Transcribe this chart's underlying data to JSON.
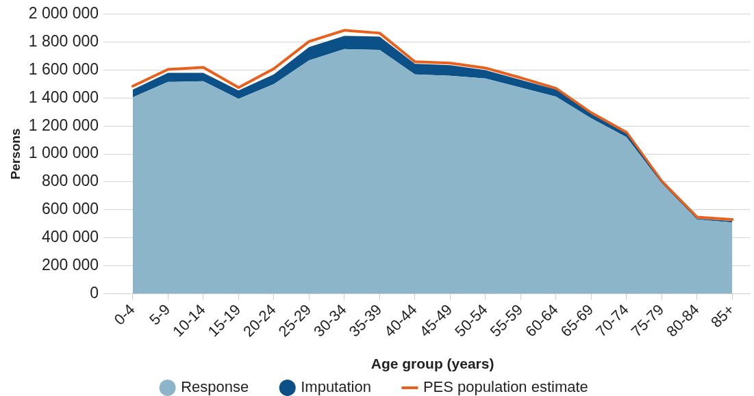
{
  "chart_data": {
    "type": "area",
    "xlabel": "Age group (years)",
    "ylabel": "Persons",
    "categories": [
      "0-4",
      "5-9",
      "10-14",
      "15-19",
      "20-24",
      "25-29",
      "30-34",
      "35-39",
      "40-44",
      "45-49",
      "50-54",
      "55-59",
      "60-64",
      "65-69",
      "70-74",
      "75-79",
      "80-84",
      "85+"
    ],
    "stacked": true,
    "series": [
      {
        "name": "Response",
        "color": "#8db5c9",
        "values": [
          1405000,
          1515000,
          1520000,
          1395000,
          1500000,
          1670000,
          1750000,
          1745000,
          1570000,
          1560000,
          1540000,
          1475000,
          1410000,
          1255000,
          1120000,
          790000,
          530000,
          510000
        ]
      },
      {
        "name": "Imputation",
        "color": "#0b5187",
        "values": [
          55000,
          65000,
          60000,
          60000,
          70000,
          95000,
          95000,
          95000,
          75000,
          75000,
          60000,
          55000,
          50000,
          30000,
          25000,
          5000,
          7000,
          9000
        ]
      },
      {
        "name": "PES population estimate",
        "type": "line",
        "color": "#e8601c",
        "values": [
          1485000,
          1605000,
          1620000,
          1475000,
          1610000,
          1805000,
          1885000,
          1865000,
          1660000,
          1650000,
          1615000,
          1545000,
          1470000,
          1295000,
          1155000,
          805000,
          548000,
          530000
        ]
      }
    ],
    "ylim": [
      0,
      2000000
    ],
    "yticks": [
      0,
      {
        "value": 200000,
        "label": "200 000"
      },
      {
        "value": 400000,
        "label": "400 000"
      },
      {
        "value": 600000,
        "label": "600 000"
      },
      {
        "value": 800000,
        "label": "800 000"
      },
      {
        "value": 1000000,
        "label": "1 000 000"
      },
      {
        "value": 1200000,
        "label": "1 200 000"
      },
      {
        "value": 1400000,
        "label": "1 400 000"
      },
      {
        "value": 1600000,
        "label": "1 600 000"
      },
      {
        "value": 1800000,
        "label": "1 800 000"
      },
      {
        "value": 2000000,
        "label": "2 000 000"
      }
    ],
    "grid": "y",
    "legend": "bottom"
  }
}
